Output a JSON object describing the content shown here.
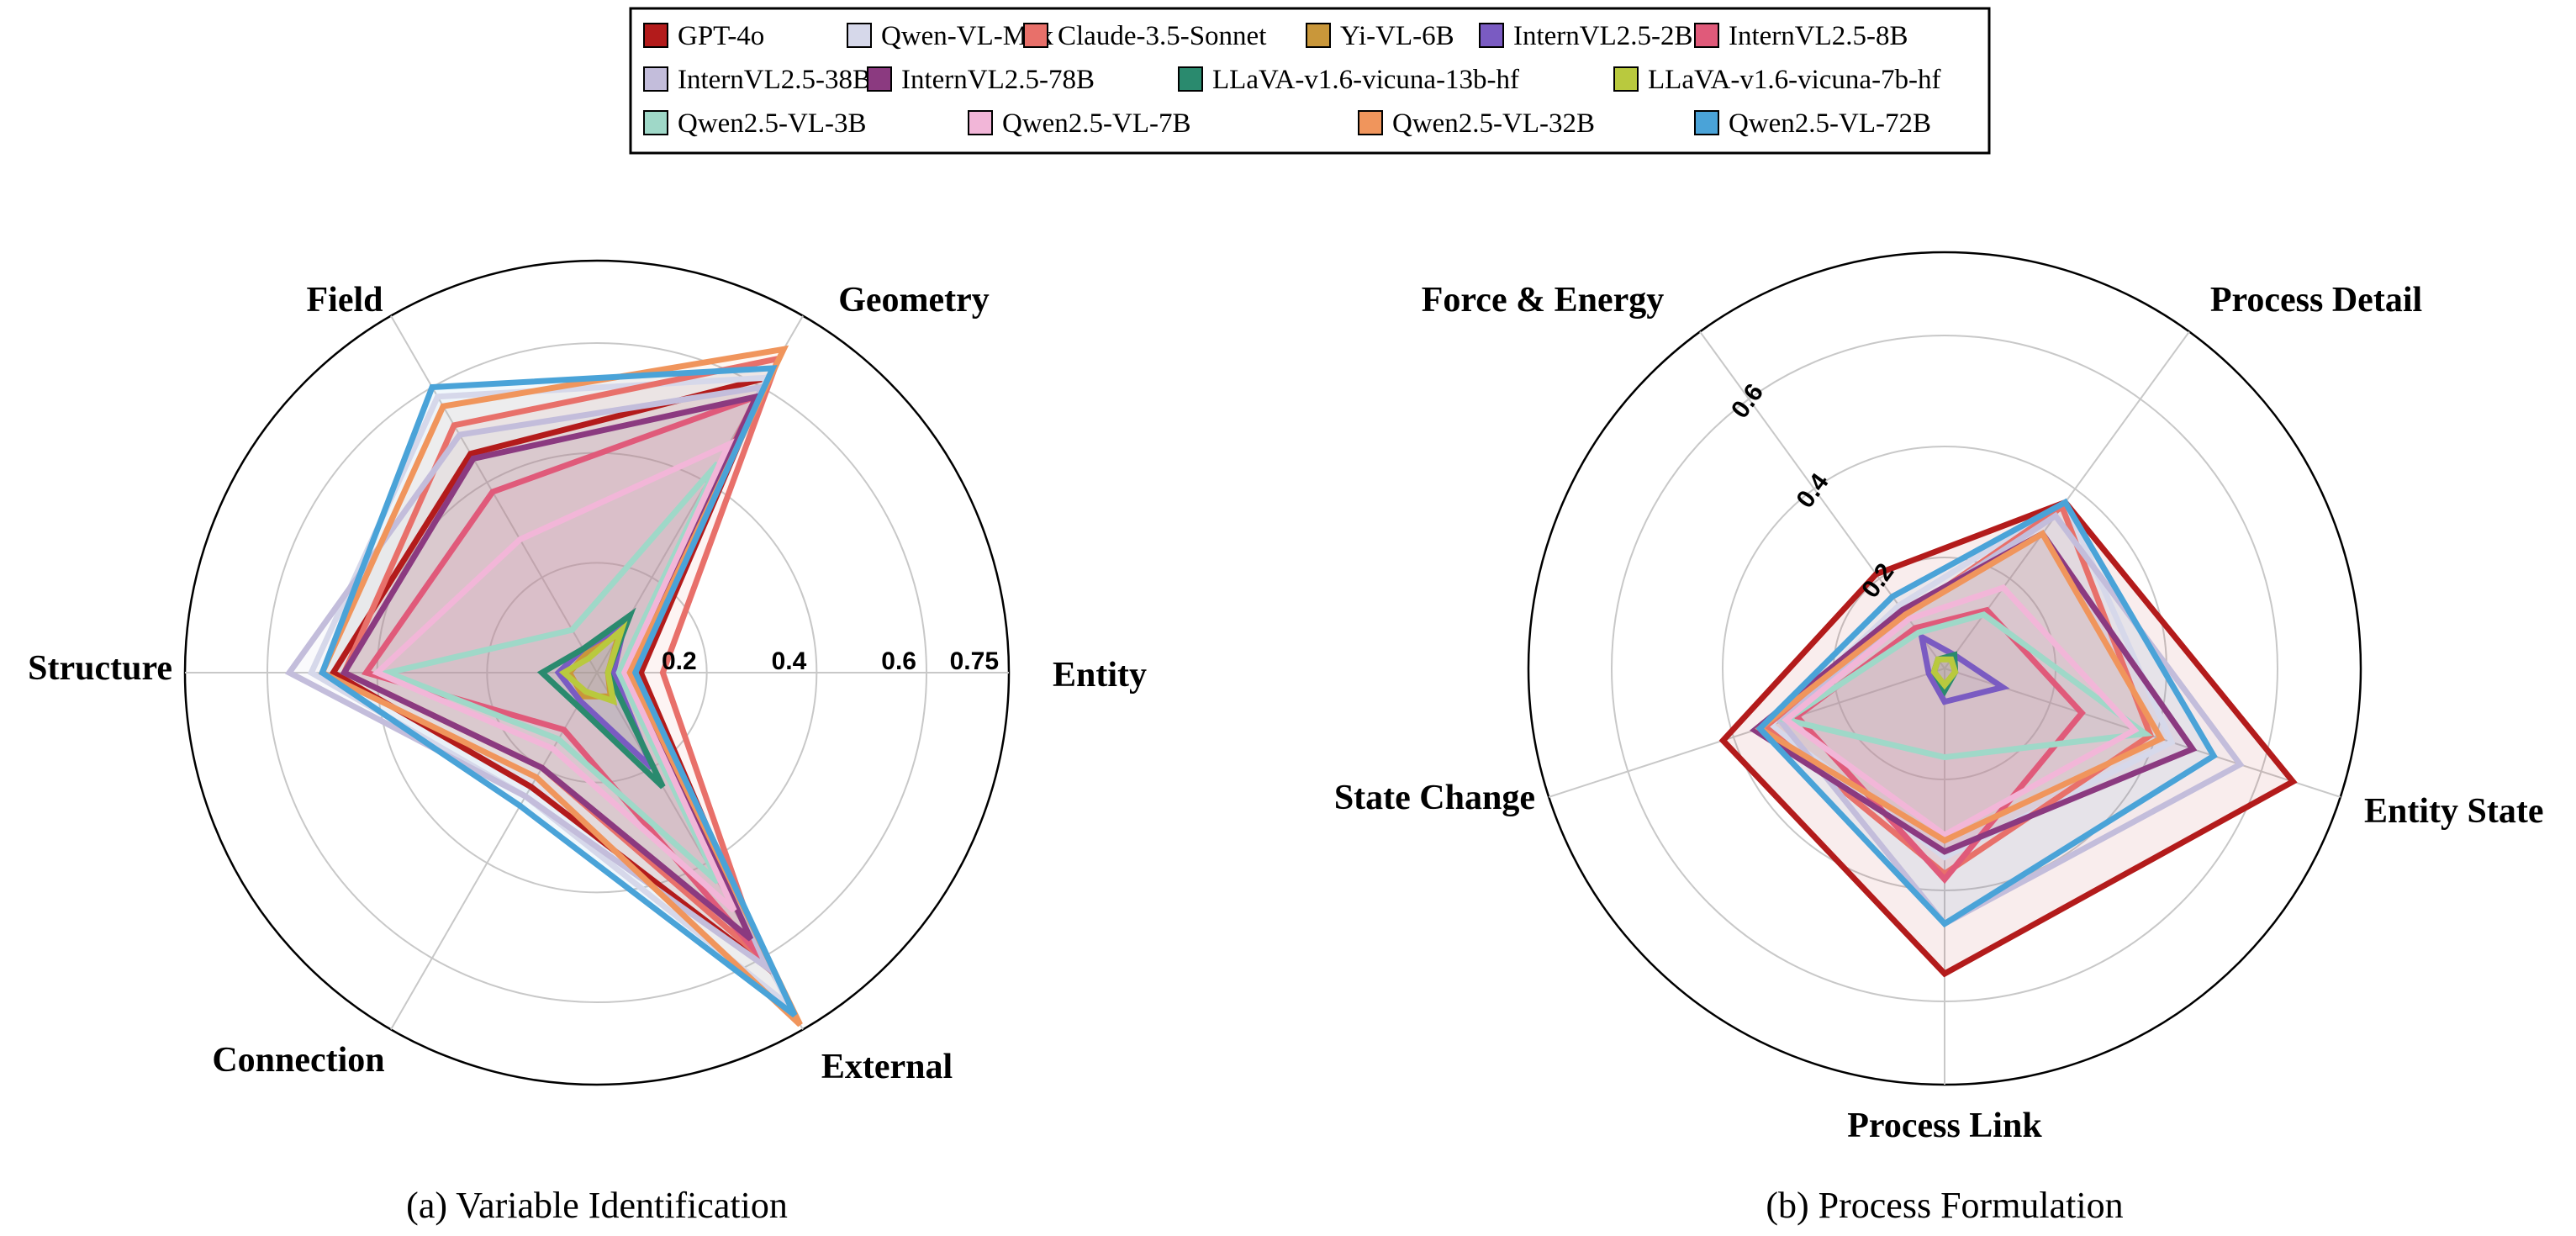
{
  "legend": {
    "placement": "top-center",
    "entries": [
      {
        "name": "GPT-4o",
        "color": "#b31b1b"
      },
      {
        "name": "Qwen-VL-Max",
        "color": "#d6d8ea"
      },
      {
        "name": "Claude-3.5-Sonnet",
        "color": "#e8706a"
      },
      {
        "name": "Yi-VL-6B",
        "color": "#c9973a"
      },
      {
        "name": "InternVL2.5-2B",
        "color": "#7a5bc2"
      },
      {
        "name": "InternVL2.5-8B",
        "color": "#e05a7a"
      },
      {
        "name": "InternVL2.5-38B",
        "color": "#c3bddb"
      },
      {
        "name": "InternVL2.5-78B",
        "color": "#8b3a80"
      },
      {
        "name": "LLaVA-v1.6-vicuna-13b-hf",
        "color": "#2a8a6e"
      },
      {
        "name": "LLaVA-v1.6-vicuna-7b-hf",
        "color": "#b9c93e"
      },
      {
        "name": "Qwen2.5-VL-3B",
        "color": "#9fd8c8"
      },
      {
        "name": "Qwen2.5-VL-7B",
        "color": "#f2b6d8"
      },
      {
        "name": "Qwen2.5-VL-32B",
        "color": "#f0955c"
      },
      {
        "name": "Qwen2.5-VL-72B",
        "color": "#4aa3d8"
      }
    ]
  },
  "chart_data": [
    {
      "type": "radar",
      "caption": "(a) Variable Identification",
      "axes": [
        "Entity",
        "Geometry",
        "Field",
        "Structure",
        "Connection",
        "External"
      ],
      "rlim": [
        0,
        0.75
      ],
      "rticks": [
        0.2,
        0.4,
        0.6,
        0.75
      ],
      "rtick_labels": [
        "0.2",
        "0.4",
        "0.6",
        "0.75"
      ],
      "grid": true,
      "series": [
        {
          "name": "GPT-4o",
          "values": [
            0.08,
            0.62,
            0.46,
            0.48,
            0.24,
            0.62
          ]
        },
        {
          "name": "Qwen-VL-Max",
          "values": [
            0.06,
            0.62,
            0.58,
            0.52,
            0.26,
            0.7
          ]
        },
        {
          "name": "Claude-3.5-Sonnet",
          "values": [
            0.12,
            0.66,
            0.52,
            0.46,
            0.2,
            0.6
          ]
        },
        {
          "name": "Yi-VL-6B",
          "values": [
            0.02,
            0.08,
            0.04,
            0.05,
            0.05,
            0.05
          ]
        },
        {
          "name": "InternVL2.5-2B",
          "values": [
            0.03,
            0.1,
            0.05,
            0.07,
            0.06,
            0.2
          ]
        },
        {
          "name": "InternVL2.5-8B",
          "values": [
            0.05,
            0.58,
            0.38,
            0.42,
            0.12,
            0.6
          ]
        },
        {
          "name": "InternVL2.5-38B",
          "values": [
            0.07,
            0.6,
            0.5,
            0.56,
            0.26,
            0.62
          ]
        },
        {
          "name": "InternVL2.5-78B",
          "values": [
            0.06,
            0.58,
            0.45,
            0.46,
            0.2,
            0.56
          ]
        },
        {
          "name": "LLaVA-v1.6-vicuna-13b-hf",
          "values": [
            0.02,
            0.12,
            0.05,
            0.1,
            0.07,
            0.24
          ]
        },
        {
          "name": "LLaVA-v1.6-vicuna-7b-hf",
          "values": [
            0.02,
            0.09,
            0.03,
            0.06,
            0.04,
            0.06
          ]
        },
        {
          "name": "Qwen2.5-VL-3B",
          "values": [
            0.04,
            0.44,
            0.09,
            0.38,
            0.14,
            0.44
          ]
        },
        {
          "name": "Qwen2.5-VL-7B",
          "values": [
            0.05,
            0.48,
            0.28,
            0.4,
            0.16,
            0.5
          ]
        },
        {
          "name": "Qwen2.5-VL-32B",
          "values": [
            0.06,
            0.68,
            0.56,
            0.5,
            0.22,
            0.74
          ]
        },
        {
          "name": "Qwen2.5-VL-72B",
          "values": [
            0.07,
            0.64,
            0.6,
            0.5,
            0.28,
            0.72
          ]
        }
      ]
    },
    {
      "type": "radar",
      "caption": "(b) Process Formulation",
      "axes": [
        "Entity State",
        "Process Detail",
        "Force & Energy",
        "State Change",
        "Process Link"
      ],
      "rlim": [
        0,
        0.75
      ],
      "rticks": [
        0.2,
        0.4,
        0.6
      ],
      "rtick_labels": [
        "0.2",
        "0.4",
        "0.6"
      ],
      "grid": true,
      "series": [
        {
          "name": "GPT-4o",
          "values": [
            0.66,
            0.37,
            0.21,
            0.42,
            0.55
          ]
        },
        {
          "name": "Qwen-VL-Max",
          "values": [
            0.43,
            0.37,
            0.14,
            0.33,
            0.34
          ]
        },
        {
          "name": "Claude-3.5-Sonnet",
          "values": [
            0.39,
            0.36,
            0.12,
            0.34,
            0.37
          ]
        },
        {
          "name": "Yi-VL-6B",
          "values": [
            0.02,
            0.03,
            0.02,
            0.02,
            0.03
          ]
        },
        {
          "name": "InternVL2.5-2B",
          "values": [
            0.11,
            0.03,
            0.07,
            0.03,
            0.06
          ]
        },
        {
          "name": "InternVL2.5-8B",
          "values": [
            0.26,
            0.13,
            0.09,
            0.28,
            0.38
          ]
        },
        {
          "name": "InternVL2.5-38B",
          "values": [
            0.56,
            0.34,
            0.12,
            0.31,
            0.46
          ]
        },
        {
          "name": "InternVL2.5-78B",
          "values": [
            0.47,
            0.3,
            0.13,
            0.36,
            0.33
          ]
        },
        {
          "name": "LLaVA-v1.6-vicuna-13b-hf",
          "values": [
            0.02,
            0.03,
            0.02,
            0.02,
            0.04
          ]
        },
        {
          "name": "LLaVA-v1.6-vicuna-7b-hf",
          "values": [
            0.02,
            0.02,
            0.02,
            0.02,
            0.03
          ]
        },
        {
          "name": "Qwen2.5-VL-3B",
          "values": [
            0.38,
            0.12,
            0.08,
            0.3,
            0.16
          ]
        },
        {
          "name": "Qwen2.5-VL-7B",
          "values": [
            0.36,
            0.18,
            0.11,
            0.3,
            0.3
          ]
        },
        {
          "name": "Qwen2.5-VL-32B",
          "values": [
            0.41,
            0.3,
            0.12,
            0.35,
            0.31
          ]
        },
        {
          "name": "Qwen2.5-VL-72B",
          "values": [
            0.51,
            0.37,
            0.16,
            0.35,
            0.46
          ]
        }
      ]
    }
  ]
}
